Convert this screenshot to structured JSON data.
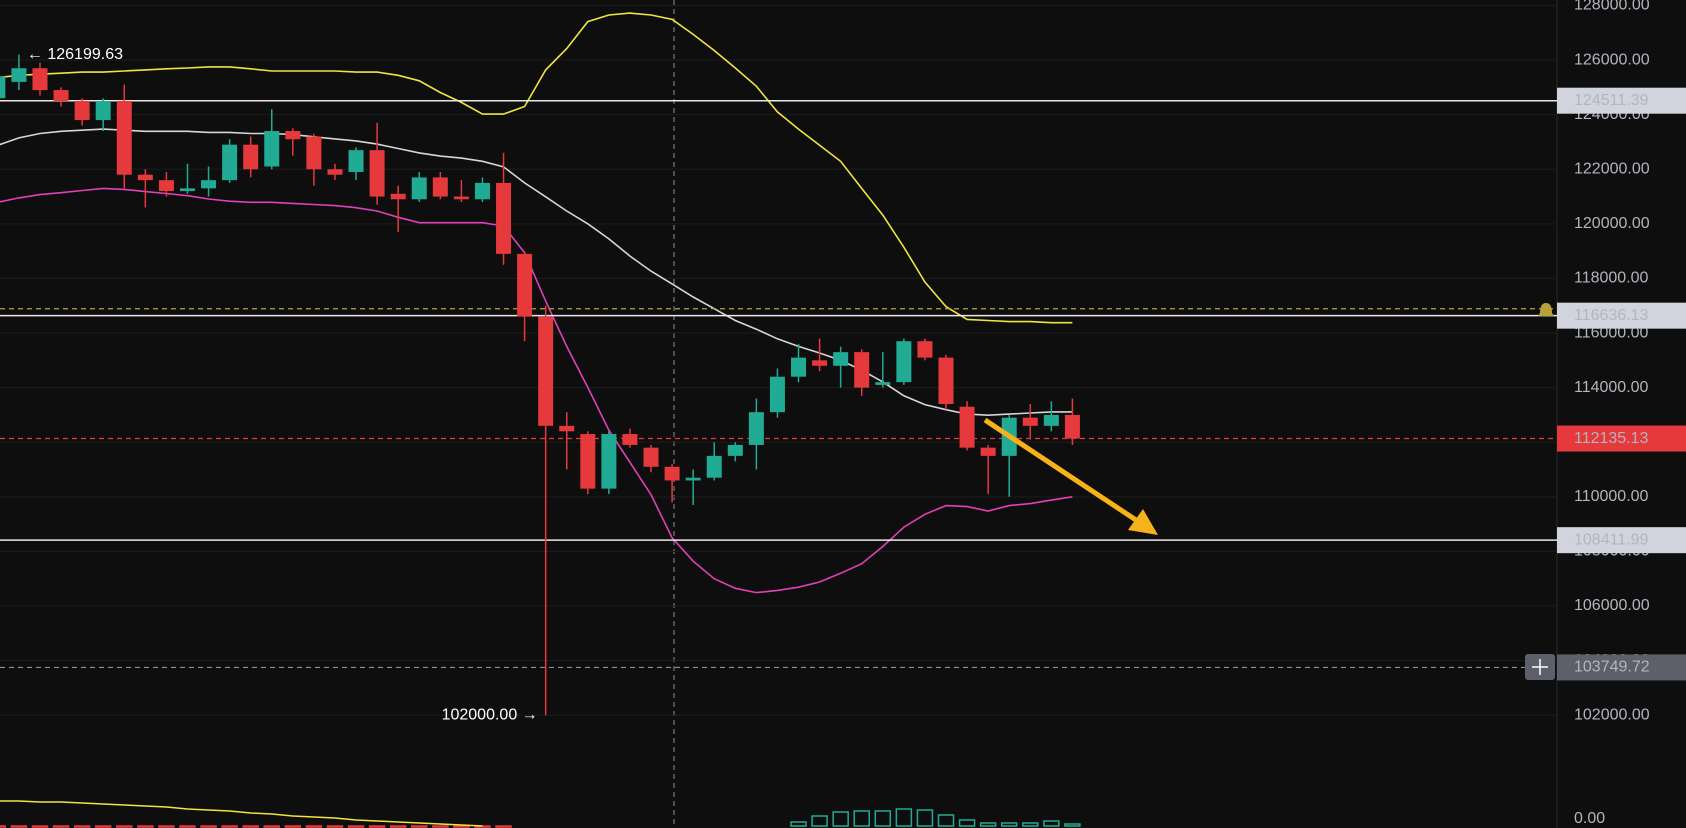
{
  "chart_data": {
    "type": "candlestick",
    "open": [
      124600,
      125200,
      125700,
      124900,
      124500,
      123800,
      124500,
      121800,
      121600,
      121200,
      121300,
      121600,
      122900,
      122100,
      123400,
      123200,
      122000,
      121900,
      122700,
      121100,
      120900,
      121700,
      121000,
      120900,
      121500,
      118900,
      116600,
      112600,
      112300,
      110300,
      112300,
      111800,
      111100,
      110600,
      110700,
      111500,
      111900,
      113100,
      114400,
      115000,
      114800,
      115300,
      114100,
      114200,
      115700,
      115100,
      113300,
      111800,
      111500,
      112900,
      112600,
      113000
    ],
    "high": [
      126000,
      126199.63,
      125900,
      125000,
      124600,
      124600,
      125100,
      122000,
      121900,
      122200,
      122100,
      123100,
      123200,
      124200,
      123500,
      123300,
      122200,
      122800,
      123700,
      121400,
      121900,
      121900,
      121600,
      121700,
      122600,
      119000,
      117000,
      113100,
      112400,
      112400,
      112500,
      111900,
      111200,
      111000,
      112000,
      112000,
      113600,
      114700,
      115600,
      115800,
      115500,
      115400,
      115300,
      115800,
      115800,
      115200,
      113500,
      111900,
      113000,
      113400,
      113500,
      113600
    ],
    "low": [
      124200,
      124900,
      124700,
      124300,
      123600,
      123400,
      121300,
      120600,
      121000,
      121100,
      121000,
      121500,
      121700,
      122000,
      122500,
      121400,
      121600,
      121600,
      120700,
      119700,
      120800,
      120900,
      120800,
      120800,
      118500,
      115700,
      102000,
      111000,
      110100,
      110100,
      111800,
      110900,
      109800,
      109700,
      110600,
      111300,
      111000,
      112900,
      114200,
      114600,
      114000,
      113700,
      114000,
      114100,
      115000,
      113200,
      111700,
      110100,
      110000,
      112100,
      112400,
      111900
    ],
    "close": [
      125400,
      125700,
      124900,
      124500,
      123800,
      124500,
      121800,
      121600,
      121200,
      121300,
      121600,
      122900,
      122000,
      123400,
      123100,
      122000,
      121800,
      122700,
      121000,
      120900,
      121700,
      121000,
      120900,
      121500,
      118900,
      116600,
      112600,
      112400,
      110300,
      112300,
      111900,
      111100,
      110600,
      110700,
      111500,
      111900,
      113100,
      114400,
      115100,
      114800,
      115300,
      114000,
      114200,
      115700,
      115100,
      113400,
      111800,
      111500,
      112900,
      112600,
      113000,
      112135.13
    ],
    "up_color": "#22ab94",
    "down_color": "#e5393c",
    "bands": [
      {
        "color": "#f0e442",
        "values": [
          125360,
          125440,
          125480,
          125520,
          125560,
          125560,
          125600,
          125640,
          125680,
          125710,
          125750,
          125750,
          125680,
          125600,
          125600,
          125600,
          125600,
          125560,
          125560,
          125440,
          125240,
          124810,
          124450,
          124020,
          124020,
          124300,
          125640,
          126420,
          127410,
          127650,
          127720,
          127650,
          127490,
          126940,
          126350,
          125710,
          125040,
          124100,
          123470,
          122880,
          122290,
          121300,
          120320,
          119140,
          117870,
          116970,
          116500,
          116460,
          116420,
          116420,
          116380,
          116380
        ]
      },
      {
        "color": "#d6d6d6",
        "values": [
          122880,
          123150,
          123310,
          123390,
          123430,
          123470,
          123430,
          123390,
          123390,
          123390,
          123350,
          123350,
          123310,
          123310,
          123270,
          123190,
          123110,
          123040,
          122920,
          122760,
          122600,
          122480,
          122410,
          122290,
          122090,
          121500,
          120990,
          120470,
          120000,
          119450,
          118820,
          118270,
          117800,
          117320,
          116890,
          116460,
          116140,
          115790,
          115510,
          115270,
          115000,
          114640,
          114210,
          113700,
          113380,
          113190,
          113030,
          112990,
          113030,
          113070,
          113110,
          113110
        ]
      },
      {
        "color": "#e040b8",
        "values": [
          120790,
          120950,
          121070,
          121140,
          121220,
          121300,
          121260,
          121180,
          121110,
          121030,
          120910,
          120830,
          120790,
          120790,
          120750,
          120710,
          120670,
          120590,
          120470,
          120240,
          120040,
          120040,
          120040,
          120040,
          119920,
          118940,
          117170,
          115510,
          114010,
          112440,
          111260,
          110080,
          108500,
          107640,
          107000,
          106650,
          106490,
          106570,
          106690,
          106880,
          107200,
          107550,
          108180,
          108890,
          109360,
          109680,
          109640,
          109480,
          109680,
          109750,
          109880,
          110000
        ]
      }
    ],
    "ylim": [
      99040,
      128200
    ],
    "yticks": [
      {
        "value": 102000,
        "label": "102000.00"
      },
      {
        "value": 104000,
        "label": "104000.00"
      },
      {
        "value": 106000,
        "label": "106000.00"
      },
      {
        "value": 108000,
        "label": "108000.00"
      },
      {
        "value": 110000,
        "label": "110000.00"
      },
      {
        "value": 112000,
        "label": "112000.00"
      },
      {
        "value": 114000,
        "label": "114000.00"
      },
      {
        "value": 116000,
        "label": "116000.00"
      },
      {
        "value": 118000,
        "label": "118000.00"
      },
      {
        "value": 120000,
        "label": "120000.00"
      },
      {
        "value": 122000,
        "label": "122000.00"
      },
      {
        "value": 124000,
        "label": "124000.00"
      },
      {
        "value": 126000,
        "label": "126000.00"
      },
      {
        "value": 128000,
        "label": "128000.00"
      }
    ],
    "grid": true,
    "levels": [
      {
        "value": 124511.39,
        "color": "#e8e8e8",
        "box": "#d1d4dc",
        "text_color": "#131722"
      },
      {
        "value": 116636.13,
        "color": "#e8e8e8",
        "box": "#d1d4dc",
        "text_color": "#131722"
      },
      {
        "value": 108411.99,
        "color": "#e8e8e8",
        "box": "#d1d4dc",
        "text_color": "#131722"
      },
      {
        "value": 112135.13,
        "color": "#e5393c",
        "dashed": true,
        "box": "#e5393c",
        "text_color": "#ffffff"
      },
      {
        "value": 103749.72,
        "color": "#8a8d96",
        "dashed": true,
        "box": "#5d606b",
        "text_color": "#ffffff"
      },
      {
        "value": 116890,
        "color": "#b8a03a",
        "dashed": true
      }
    ],
    "annotations": [
      {
        "label": "← 126199.63",
        "value": 126199.63,
        "index": 1,
        "side": "right"
      },
      {
        "label": "102000.00 →",
        "value": 102000,
        "index": 26,
        "side": "left"
      }
    ],
    "oscillator": {
      "ylim": [
        -2,
        30
      ],
      "yticks": [
        {
          "value": 0,
          "label": "0.00"
        }
      ],
      "histogram": [
        -1,
        -1,
        -1,
        -1,
        -1,
        -1,
        -1,
        -1,
        -1,
        -1,
        -1,
        -1,
        -1,
        -1,
        -1,
        -1,
        -1,
        -1,
        -1,
        -1,
        -1,
        -1,
        -1,
        -1,
        -1,
        0,
        0,
        0,
        0,
        0,
        0,
        0,
        0,
        0,
        0,
        0,
        0,
        0,
        4,
        10,
        14,
        15,
        15,
        17,
        16,
        11,
        6,
        3,
        3,
        3,
        5,
        2
      ],
      "signal": {
        "color": "#f0e442",
        "values": [
          25,
          25,
          24,
          24,
          23,
          22,
          21,
          20,
          19,
          17,
          16,
          15,
          13,
          12,
          10,
          9,
          8,
          6,
          5,
          4,
          3,
          2,
          1,
          0,
          null,
          null,
          null,
          null,
          null,
          null,
          null,
          null,
          null,
          null,
          null,
          null,
          null,
          null,
          null,
          null,
          null,
          null,
          null,
          null,
          null,
          null,
          null,
          null,
          null,
          null,
          null,
          null
        ]
      }
    }
  }
}
